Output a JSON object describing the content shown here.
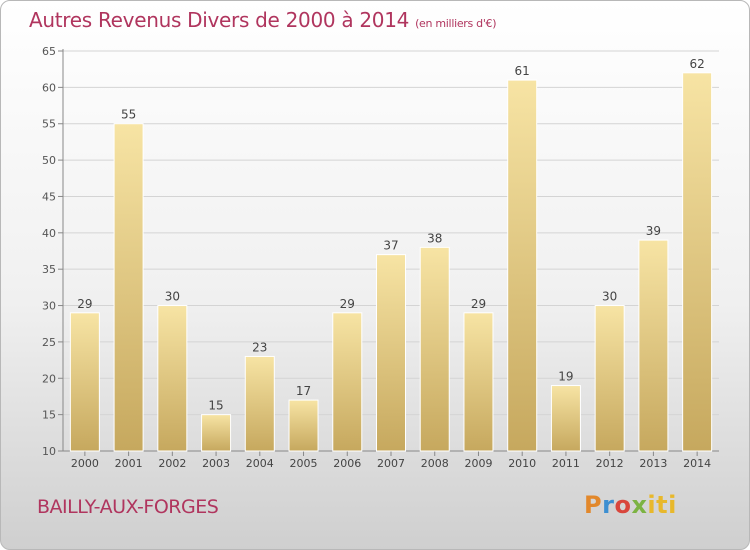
{
  "title": "Autres Revenus Divers de 2000 à 2014",
  "unit_note": "(en milliers d'€)",
  "place": "BAILLY-AUX-FORGES",
  "logo": {
    "brand": "Proxiti",
    "parts": [
      "P",
      "r",
      "o",
      "x",
      "iti"
    ]
  },
  "colors": {
    "title": "#b0355e",
    "bar_light": "#f7e4a4",
    "bar_dark": "#c6a85e",
    "grid": "#d4d4d4"
  },
  "chart_data": {
    "type": "bar",
    "categories": [
      "2000",
      "2001",
      "2002",
      "2003",
      "2004",
      "2005",
      "2006",
      "2007",
      "2008",
      "2009",
      "2010",
      "2011",
      "2012",
      "2013",
      "2014"
    ],
    "values": [
      29,
      55,
      30,
      15,
      23,
      17,
      29,
      37,
      38,
      29,
      61,
      19,
      30,
      39,
      62
    ],
    "ylim": [
      10,
      65
    ],
    "yticks": [
      10,
      15,
      20,
      25,
      30,
      35,
      40,
      45,
      50,
      55,
      60,
      65
    ],
    "grid": true,
    "data_labels": true
  }
}
